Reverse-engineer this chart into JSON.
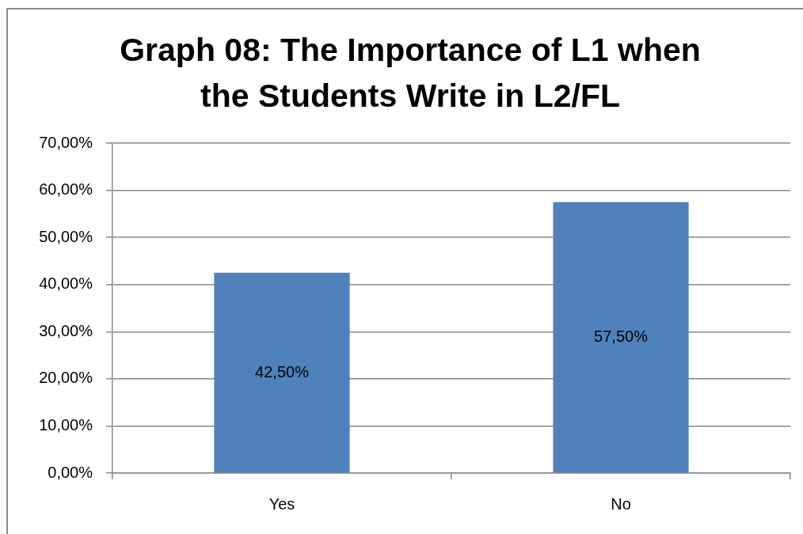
{
  "chart_data": {
    "type": "bar",
    "title": "Graph 08: The Importance of L1 when the Students Write in L2/FL",
    "categories": [
      "Yes",
      "No"
    ],
    "values": [
      42.5,
      57.5
    ],
    "value_labels": [
      "42,50%",
      "57,50%"
    ],
    "color": "#4f81bd",
    "ylim": [
      0,
      70
    ],
    "yticks": [
      {
        "value": 0,
        "label": "0,00%"
      },
      {
        "value": 10,
        "label": "10,00%"
      },
      {
        "value": 20,
        "label": "20,00%"
      },
      {
        "value": 30,
        "label": "30,00%"
      },
      {
        "value": 40,
        "label": "40,00%"
      },
      {
        "value": 50,
        "label": "50,00%"
      },
      {
        "value": 60,
        "label": "60,00%"
      },
      {
        "value": 70,
        "label": "70,00%"
      }
    ],
    "grid": "y"
  }
}
